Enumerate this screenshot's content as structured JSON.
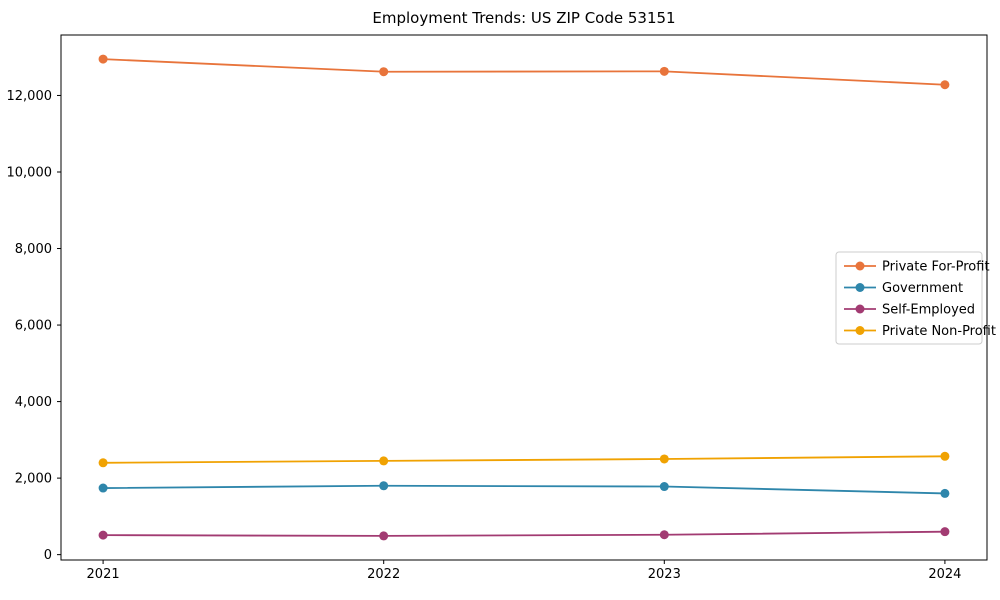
{
  "chart_data": {
    "type": "line",
    "title": "Employment Trends: US ZIP Code 53151",
    "xlabel": "",
    "ylabel": "",
    "x": [
      2021,
      2022,
      2023,
      2024
    ],
    "series": [
      {
        "name": "Private For-Profit",
        "color": "#E8743B",
        "values": [
          12950,
          12620,
          12630,
          12280
        ]
      },
      {
        "name": "Government",
        "color": "#2E86AB",
        "values": [
          1740,
          1800,
          1780,
          1600
        ]
      },
      {
        "name": "Self-Employed",
        "color": "#A23B72",
        "values": [
          510,
          490,
          520,
          600
        ]
      },
      {
        "name": "Private Non-Profit",
        "color": "#F0A202",
        "values": [
          2400,
          2450,
          2500,
          2570
        ]
      }
    ],
    "xticks": [
      2021,
      2022,
      2023,
      2024
    ],
    "yticks": [
      0,
      2000,
      4000,
      6000,
      8000,
      10000,
      12000
    ],
    "xlim": [
      2020.85,
      2024.15
    ],
    "ylim": [
      -140,
      13580
    ],
    "grid": false,
    "legend_position": "center-right",
    "marker": "o",
    "axis_color": "#000000",
    "legend_border_color": "#cccccc",
    "background_color": "#ffffff"
  }
}
